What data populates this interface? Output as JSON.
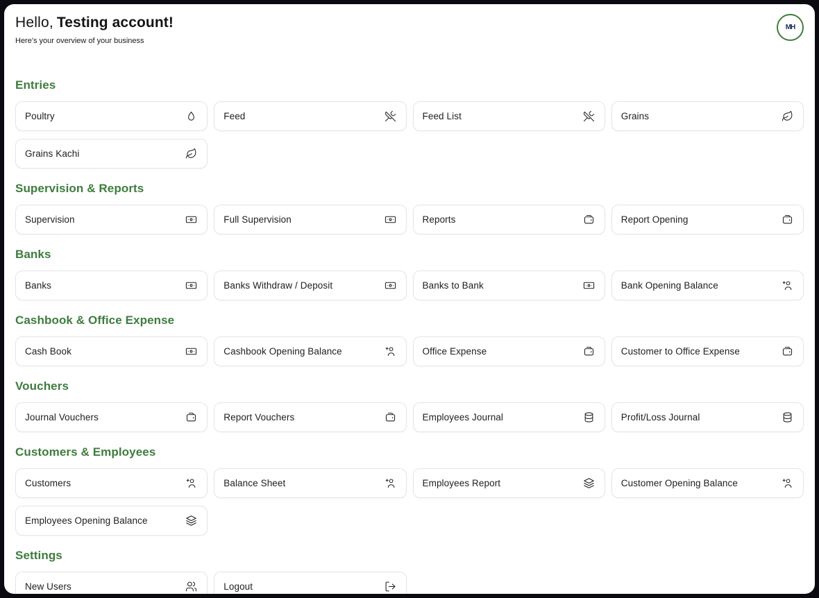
{
  "header": {
    "greeting_prefix": "Hello,",
    "greeting_name": "Testing account!",
    "subtitle": "Here's your overview of your business",
    "logo_monogram": "MH"
  },
  "colors": {
    "accent_green": "#3e7c3e",
    "logo_ring_green": "#3e7d3c",
    "logo_navy": "#1b2b59",
    "frame_background": "#0a0a10",
    "card_border": "#e5e5e8",
    "text_dark": "#202023"
  },
  "sections": [
    {
      "title": "Entries",
      "cards": [
        {
          "label": "Poultry",
          "icon": "egg-icon"
        },
        {
          "label": "Feed",
          "icon": "utensils-crossed-icon"
        },
        {
          "label": "Feed List",
          "icon": "utensils-crossed-icon"
        },
        {
          "label": "Grains",
          "icon": "leaf-icon"
        },
        {
          "label": "Grains Kachi",
          "icon": "leaf-icon"
        }
      ]
    },
    {
      "title": "Supervision & Reports",
      "cards": [
        {
          "label": "Supervision",
          "icon": "banknote-icon"
        },
        {
          "label": "Full Supervision",
          "icon": "banknote-icon"
        },
        {
          "label": "Reports",
          "icon": "wallet-icon"
        },
        {
          "label": "Report Opening",
          "icon": "wallet-icon"
        }
      ]
    },
    {
      "title": "Banks",
      "cards": [
        {
          "label": "Banks",
          "icon": "banknote-icon"
        },
        {
          "label": "Banks Withdraw / Deposit",
          "icon": "banknote-icon"
        },
        {
          "label": "Banks to Bank",
          "icon": "banknote-icon"
        },
        {
          "label": "Bank Opening Balance",
          "icon": "user-plus-icon"
        }
      ]
    },
    {
      "title": "Cashbook & Office Expense",
      "cards": [
        {
          "label": "Cash Book",
          "icon": "banknote-icon"
        },
        {
          "label": "Cashbook Opening Balance",
          "icon": "user-plus-icon"
        },
        {
          "label": "Office Expense",
          "icon": "wallet-icon"
        },
        {
          "label": "Customer to Office Expense",
          "icon": "wallet-icon"
        }
      ]
    },
    {
      "title": "Vouchers",
      "cards": [
        {
          "label": "Journal Vouchers",
          "icon": "wallet-icon"
        },
        {
          "label": "Report Vouchers",
          "icon": "wallet-icon"
        },
        {
          "label": "Employees Journal",
          "icon": "coins-icon"
        },
        {
          "label": "Profit/Loss Journal",
          "icon": "coins-icon"
        }
      ]
    },
    {
      "title": "Customers & Employees",
      "cards": [
        {
          "label": "Customers",
          "icon": "user-plus-icon"
        },
        {
          "label": "Balance Sheet",
          "icon": "user-plus-icon"
        },
        {
          "label": "Employees Report",
          "icon": "layers-icon"
        },
        {
          "label": "Customer Opening Balance",
          "icon": "user-plus-icon"
        },
        {
          "label": "Employees Opening Balance",
          "icon": "layers-icon"
        }
      ]
    },
    {
      "title": "Settings",
      "cards": [
        {
          "label": "New Users",
          "icon": "users-icon"
        },
        {
          "label": "Logout",
          "icon": "logout-icon"
        }
      ]
    }
  ]
}
